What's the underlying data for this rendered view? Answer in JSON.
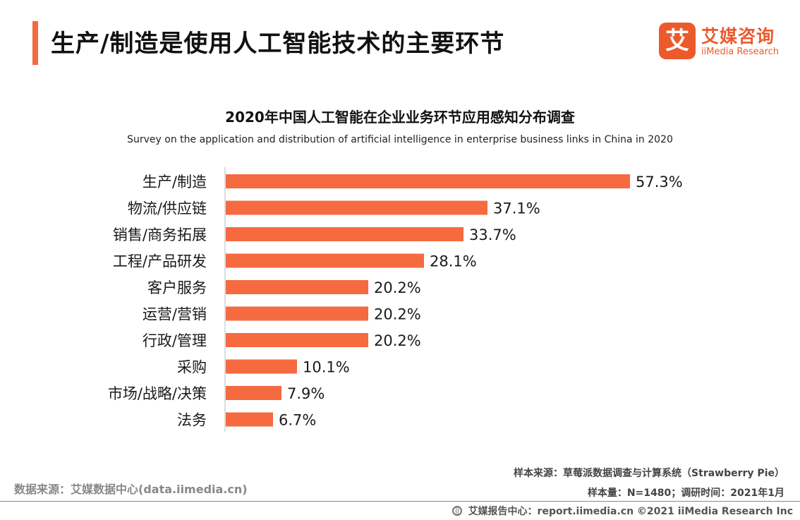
{
  "header": {
    "title": "生产/制造是使用人工智能技术的主要环节",
    "accent_color": "#f26a3d"
  },
  "logo": {
    "glyph": "艾",
    "name_cn": "艾媒咨询",
    "name_en": "iiMedia Research",
    "color": "#ec5a2b"
  },
  "chart_data": {
    "type": "bar",
    "orientation": "horizontal",
    "title": "2020年中国人工智能在企业业务环节应用感知分布调查",
    "subtitle": "Survey on the application and distribution of artificial intelligence in enterprise business links in China in 2020",
    "categories": [
      "生产/制造",
      "物流/供应链",
      "销售/商务拓展",
      "工程/产品研发",
      "客户服务",
      "运营/营销",
      "行政/管理",
      "采购",
      "市场/战略/决策",
      "法务"
    ],
    "values": [
      57.3,
      37.1,
      33.7,
      28.1,
      20.2,
      20.2,
      20.2,
      10.1,
      7.9,
      6.7
    ],
    "value_labels": [
      "57.3%",
      "37.1%",
      "33.7%",
      "28.1%",
      "20.2%",
      "20.2%",
      "20.2%",
      "10.1%",
      "7.9%",
      "6.7%"
    ],
    "unit": "%",
    "xlim": [
      0,
      62
    ],
    "bar_color": "#f56a3f",
    "grid": false
  },
  "notes": {
    "sample_source": "样本来源：草莓派数据调查与计算系统（Strawberry Pie）",
    "sample_size": "样本量：N=1480；调研时间：2021年1月",
    "data_source": "数据来源：艾媒数据中心(data.iimedia.cn)"
  },
  "footer": {
    "icon": "globe-icon",
    "text": "艾媒报告中心：report.iimedia.cn  ©2021  iiMedia Research  Inc"
  }
}
